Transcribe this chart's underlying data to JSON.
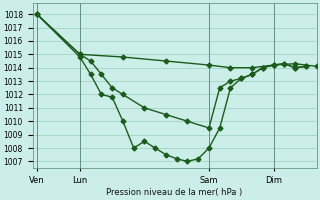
{
  "bg_color": "#cceee8",
  "grid_color": "#99ccbb",
  "line_color": "#1a5c1a",
  "marker_color": "#1a5c1a",
  "xlabel": "Pression niveau de la mer( hPa )",
  "ylim": [
    1006.5,
    1018.8
  ],
  "yticks": [
    1007,
    1008,
    1009,
    1010,
    1011,
    1012,
    1013,
    1014,
    1015,
    1016,
    1017,
    1018
  ],
  "xtick_labels": [
    "Ven",
    "Lun",
    "Sam",
    "Dim"
  ],
  "xtick_positions": [
    0,
    2,
    8,
    11
  ],
  "xlim": [
    -0.2,
    13.0
  ],
  "series": [
    {
      "x": [
        0,
        2,
        4,
        6,
        8,
        9,
        10,
        11,
        12,
        13
      ],
      "y": [
        1018,
        1015,
        1014.8,
        1014.5,
        1014.2,
        1014.0,
        1014.0,
        1014.2,
        1014.3,
        1014.1
      ],
      "marker": "D",
      "markersize": 2.5,
      "linewidth": 1.0
    },
    {
      "x": [
        0,
        2,
        2.5,
        3.0,
        3.5,
        4.0,
        5.0,
        6.0,
        7.0,
        8.0,
        8.5,
        9.0,
        9.5,
        10.0,
        10.5,
        11.0,
        11.5,
        12.0,
        12.5
      ],
      "y": [
        1018,
        1015,
        1014.5,
        1013.5,
        1012.5,
        1012,
        1011,
        1010.5,
        1010,
        1009.5,
        1012.5,
        1013,
        1013.2,
        1013.5,
        1014.0,
        1014.2,
        1014.3,
        1014.0,
        1014.1
      ],
      "marker": "D",
      "markersize": 2.5,
      "linewidth": 1.0
    },
    {
      "x": [
        0,
        2,
        2.5,
        3.0,
        3.5,
        4.0,
        4.5,
        5.0,
        5.5,
        6.0,
        6.5,
        7.0,
        7.5,
        8.0,
        8.5,
        9.0,
        9.5,
        10.0,
        10.5,
        11.0,
        11.5,
        12.0,
        12.5
      ],
      "y": [
        1018,
        1014.8,
        1013.5,
        1012.0,
        1011.8,
        1010.0,
        1008.0,
        1008.5,
        1008.0,
        1007.5,
        1007.2,
        1007.0,
        1007.2,
        1008.0,
        1009.5,
        1012.5,
        1013.2,
        1013.5,
        1014.0,
        1014.2,
        1014.3,
        1014.0,
        1014.1
      ],
      "marker": "D",
      "markersize": 2.5,
      "linewidth": 1.0
    }
  ]
}
